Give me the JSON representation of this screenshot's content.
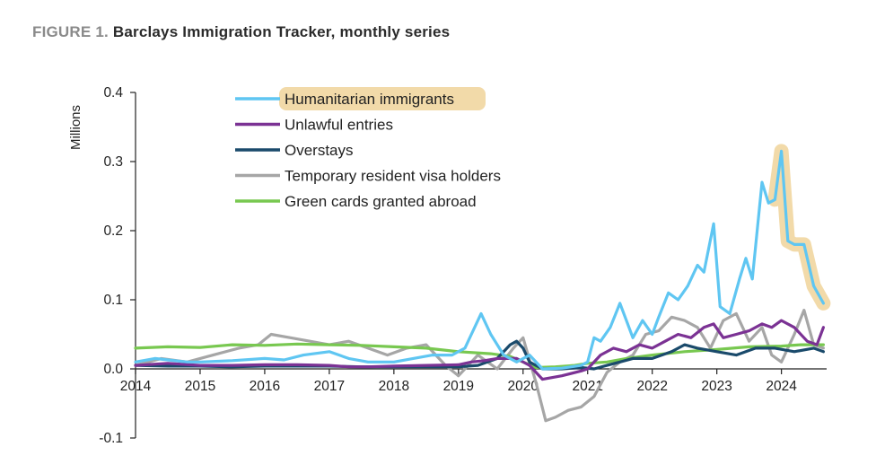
{
  "figure": {
    "label": "FIGURE 1.",
    "title": "Barclays Immigration Tracker, monthly series"
  },
  "chart_data": {
    "type": "line",
    "ylabel": "Millions",
    "xlabel": "",
    "ylim": [
      -0.1,
      0.4
    ],
    "yticks": [
      "0.4",
      "0.3",
      "0.2",
      "0.1",
      "0.0",
      "-0.1"
    ],
    "xlim": [
      2014.0,
      2024.7
    ],
    "xticks": [
      "2014",
      "2015",
      "2016",
      "2017",
      "2018",
      "2019",
      "2020",
      "2021",
      "2022",
      "2023",
      "2024"
    ],
    "grid": false,
    "legend_position": "top-left",
    "highlight": {
      "series": "Humanitarian immigrants",
      "x_range": [
        2023.9,
        2024.65
      ],
      "color": "#f0d49a"
    },
    "series": [
      {
        "name": "Humanitarian immigrants",
        "color": "#5fc6f2",
        "x": [
          2014.0,
          2014.3,
          2014.5,
          2014.8,
          2015.0,
          2015.5,
          2016.0,
          2016.3,
          2016.6,
          2017.0,
          2017.3,
          2017.6,
          2018.0,
          2018.3,
          2018.6,
          2018.9,
          2019.1,
          2019.2,
          2019.35,
          2019.5,
          2019.7,
          2019.9,
          2020.1,
          2020.3,
          2020.6,
          2020.9,
          2021.0,
          2021.1,
          2021.2,
          2021.35,
          2021.5,
          2021.6,
          2021.7,
          2021.85,
          2022.0,
          2022.1,
          2022.25,
          2022.4,
          2022.55,
          2022.7,
          2022.8,
          2022.95,
          2023.05,
          2023.2,
          2023.35,
          2023.45,
          2023.55,
          2023.7,
          2023.8,
          2023.9,
          2024.0,
          2024.1,
          2024.2,
          2024.35,
          2024.5,
          2024.65
        ],
        "y": [
          0.01,
          0.015,
          0.013,
          0.01,
          0.01,
          0.012,
          0.015,
          0.013,
          0.02,
          0.025,
          0.015,
          0.01,
          0.01,
          0.015,
          0.02,
          0.02,
          0.03,
          0.05,
          0.08,
          0.05,
          0.02,
          0.01,
          0.02,
          0.0,
          0.001,
          0.005,
          0.01,
          0.045,
          0.04,
          0.06,
          0.095,
          0.07,
          0.045,
          0.07,
          0.05,
          0.075,
          0.11,
          0.1,
          0.12,
          0.15,
          0.14,
          0.21,
          0.09,
          0.08,
          0.13,
          0.16,
          0.13,
          0.27,
          0.24,
          0.245,
          0.315,
          0.185,
          0.18,
          0.18,
          0.12,
          0.095
        ]
      },
      {
        "name": "Unlawful entries",
        "color": "#7b3294",
        "x": [
          2014.0,
          2014.5,
          2015.0,
          2015.5,
          2016.0,
          2016.5,
          2017.0,
          2017.3,
          2017.6,
          2018.0,
          2018.5,
          2019.0,
          2019.2,
          2019.4,
          2019.6,
          2019.9,
          2020.1,
          2020.3,
          2020.6,
          2020.9,
          2021.0,
          2021.2,
          2021.4,
          2021.6,
          2021.8,
          2022.0,
          2022.2,
          2022.4,
          2022.6,
          2022.8,
          2022.95,
          2023.1,
          2023.3,
          2023.5,
          2023.7,
          2023.85,
          2024.0,
          2024.2,
          2024.4,
          2024.55,
          2024.65
        ],
        "y": [
          0.005,
          0.008,
          0.005,
          0.005,
          0.006,
          0.006,
          0.005,
          0.003,
          0.003,
          0.004,
          0.005,
          0.006,
          0.01,
          0.012,
          0.015,
          0.015,
          0.005,
          -0.015,
          -0.01,
          -0.003,
          0.0,
          0.02,
          0.03,
          0.025,
          0.035,
          0.03,
          0.04,
          0.05,
          0.045,
          0.06,
          0.065,
          0.045,
          0.05,
          0.055,
          0.065,
          0.06,
          0.07,
          0.06,
          0.04,
          0.035,
          0.06
        ]
      },
      {
        "name": "Overstays",
        "color": "#1a4a6b",
        "x": [
          2014.0,
          2014.5,
          2015.0,
          2015.5,
          2016.0,
          2016.5,
          2017.0,
          2017.5,
          2018.0,
          2018.5,
          2019.0,
          2019.3,
          2019.6,
          2019.8,
          2019.9,
          2020.0,
          2020.1,
          2020.3,
          2020.6,
          2020.9,
          2021.1,
          2021.3,
          2021.5,
          2021.7,
          2022.0,
          2022.3,
          2022.5,
          2022.7,
          2023.0,
          2023.3,
          2023.6,
          2023.9,
          2024.2,
          2024.5,
          2024.65
        ],
        "y": [
          0.005,
          0.004,
          0.004,
          0.003,
          0.004,
          0.004,
          0.004,
          0.003,
          0.003,
          0.003,
          0.003,
          0.005,
          0.015,
          0.035,
          0.04,
          0.03,
          0.01,
          0.0,
          0.0,
          0.002,
          0.0,
          0.005,
          0.01,
          0.015,
          0.015,
          0.025,
          0.035,
          0.03,
          0.025,
          0.02,
          0.03,
          0.03,
          0.025,
          0.03,
          0.025
        ]
      },
      {
        "name": "Temporary resident visa holders",
        "color": "#a6a6a6",
        "x": [
          2014.0,
          2014.4,
          2014.8,
          2015.2,
          2015.6,
          2015.9,
          2016.1,
          2016.4,
          2016.7,
          2017.0,
          2017.3,
          2017.6,
          2017.9,
          2018.2,
          2018.5,
          2018.8,
          2019.0,
          2019.3,
          2019.6,
          2019.85,
          2020.0,
          2020.2,
          2020.35,
          2020.5,
          2020.7,
          2020.9,
          2021.1,
          2021.3,
          2021.5,
          2021.7,
          2021.9,
          2022.1,
          2022.3,
          2022.5,
          2022.7,
          2022.9,
          2023.1,
          2023.3,
          2023.5,
          2023.7,
          2023.85,
          2024.0,
          2024.2,
          2024.35,
          2024.5,
          2024.65
        ],
        "y": [
          0.005,
          0.015,
          0.01,
          0.02,
          0.03,
          0.035,
          0.05,
          0.045,
          0.04,
          0.035,
          0.04,
          0.03,
          0.02,
          0.03,
          0.035,
          0.005,
          -0.01,
          0.02,
          0.0,
          0.03,
          0.045,
          -0.02,
          -0.075,
          -0.07,
          -0.06,
          -0.055,
          -0.04,
          -0.005,
          0.01,
          0.02,
          0.05,
          0.055,
          0.075,
          0.07,
          0.06,
          0.03,
          0.07,
          0.08,
          0.04,
          0.06,
          0.02,
          0.01,
          0.05,
          0.085,
          0.035,
          0.03
        ]
      },
      {
        "name": "Green cards granted abroad",
        "color": "#78c850",
        "x": [
          2014.0,
          2014.5,
          2015.0,
          2015.5,
          2016.0,
          2016.5,
          2017.0,
          2017.5,
          2018.0,
          2018.5,
          2019.0,
          2019.5,
          2019.8,
          2020.0,
          2020.2,
          2020.5,
          2020.8,
          2021.0,
          2021.3,
          2021.6,
          2022.0,
          2022.5,
          2023.0,
          2023.5,
          2024.0,
          2024.3,
          2024.65
        ],
        "y": [
          0.03,
          0.032,
          0.031,
          0.035,
          0.034,
          0.036,
          0.035,
          0.034,
          0.032,
          0.03,
          0.025,
          0.022,
          0.018,
          0.01,
          0.002,
          0.003,
          0.005,
          0.008,
          0.01,
          0.015,
          0.02,
          0.025,
          0.028,
          0.032,
          0.033,
          0.035,
          0.035
        ]
      }
    ]
  }
}
